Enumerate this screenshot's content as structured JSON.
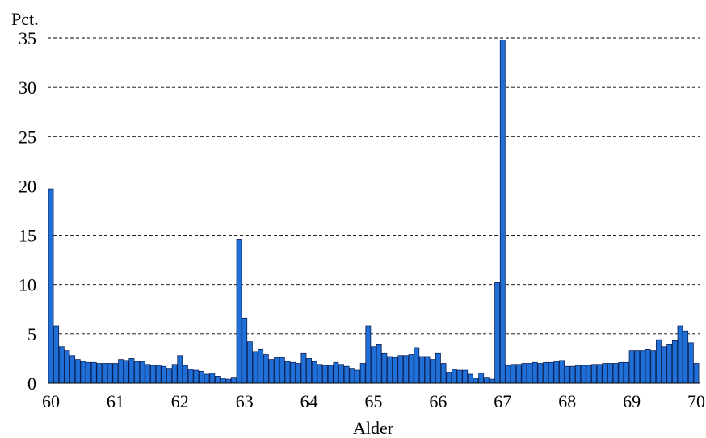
{
  "chart_data": {
    "type": "bar",
    "ylabel": "Pct.",
    "xlabel": "Alder",
    "xlim": [
      59.95,
      70.05
    ],
    "ylim": [
      0,
      35
    ],
    "yticks": [
      0,
      5,
      10,
      15,
      20,
      25,
      30,
      35
    ],
    "xticks": [
      60,
      61,
      62,
      63,
      64,
      65,
      66,
      67,
      68,
      69,
      70
    ],
    "grid": "horizontal dashed",
    "legend": "none",
    "bar_color": "#1f6fd6",
    "bar_edge_color": "#0a1f55",
    "x_start": 60,
    "x_step": 0.08333333,
    "values": [
      19.7,
      5.8,
      3.7,
      3.3,
      2.8,
      2.4,
      2.2,
      2.1,
      2.1,
      2.0,
      2.0,
      2.0,
      2.0,
      2.4,
      2.3,
      2.5,
      2.2,
      2.2,
      1.9,
      1.8,
      1.8,
      1.7,
      1.5,
      1.9,
      2.8,
      1.8,
      1.4,
      1.3,
      1.2,
      0.9,
      1.0,
      0.7,
      0.5,
      0.4,
      0.6,
      14.6,
      6.6,
      4.2,
      3.2,
      3.4,
      2.9,
      2.4,
      2.6,
      2.6,
      2.2,
      2.1,
      2.0,
      3.0,
      2.5,
      2.2,
      1.9,
      1.8,
      1.8,
      2.1,
      1.9,
      1.7,
      1.5,
      1.3,
      2.0,
      5.8,
      3.7,
      3.9,
      3.0,
      2.7,
      2.6,
      2.8,
      2.8,
      2.9,
      3.6,
      2.7,
      2.7,
      2.4,
      3.0,
      2.0,
      1.1,
      1.4,
      1.3,
      1.3,
      0.9,
      0.5,
      1.0,
      0.6,
      0.4,
      10.2,
      34.8,
      1.8,
      1.9,
      1.9,
      2.0,
      2.0,
      2.1,
      2.0,
      2.1,
      2.1,
      2.2,
      2.3,
      1.7,
      1.7,
      1.8,
      1.8,
      1.8,
      1.9,
      1.9,
      2.0,
      2.0,
      2.0,
      2.1,
      2.1,
      3.3,
      3.3,
      3.3,
      3.4,
      3.3,
      4.4,
      3.7,
      3.9,
      4.3,
      5.8,
      5.3,
      4.1,
      2.0
    ]
  }
}
